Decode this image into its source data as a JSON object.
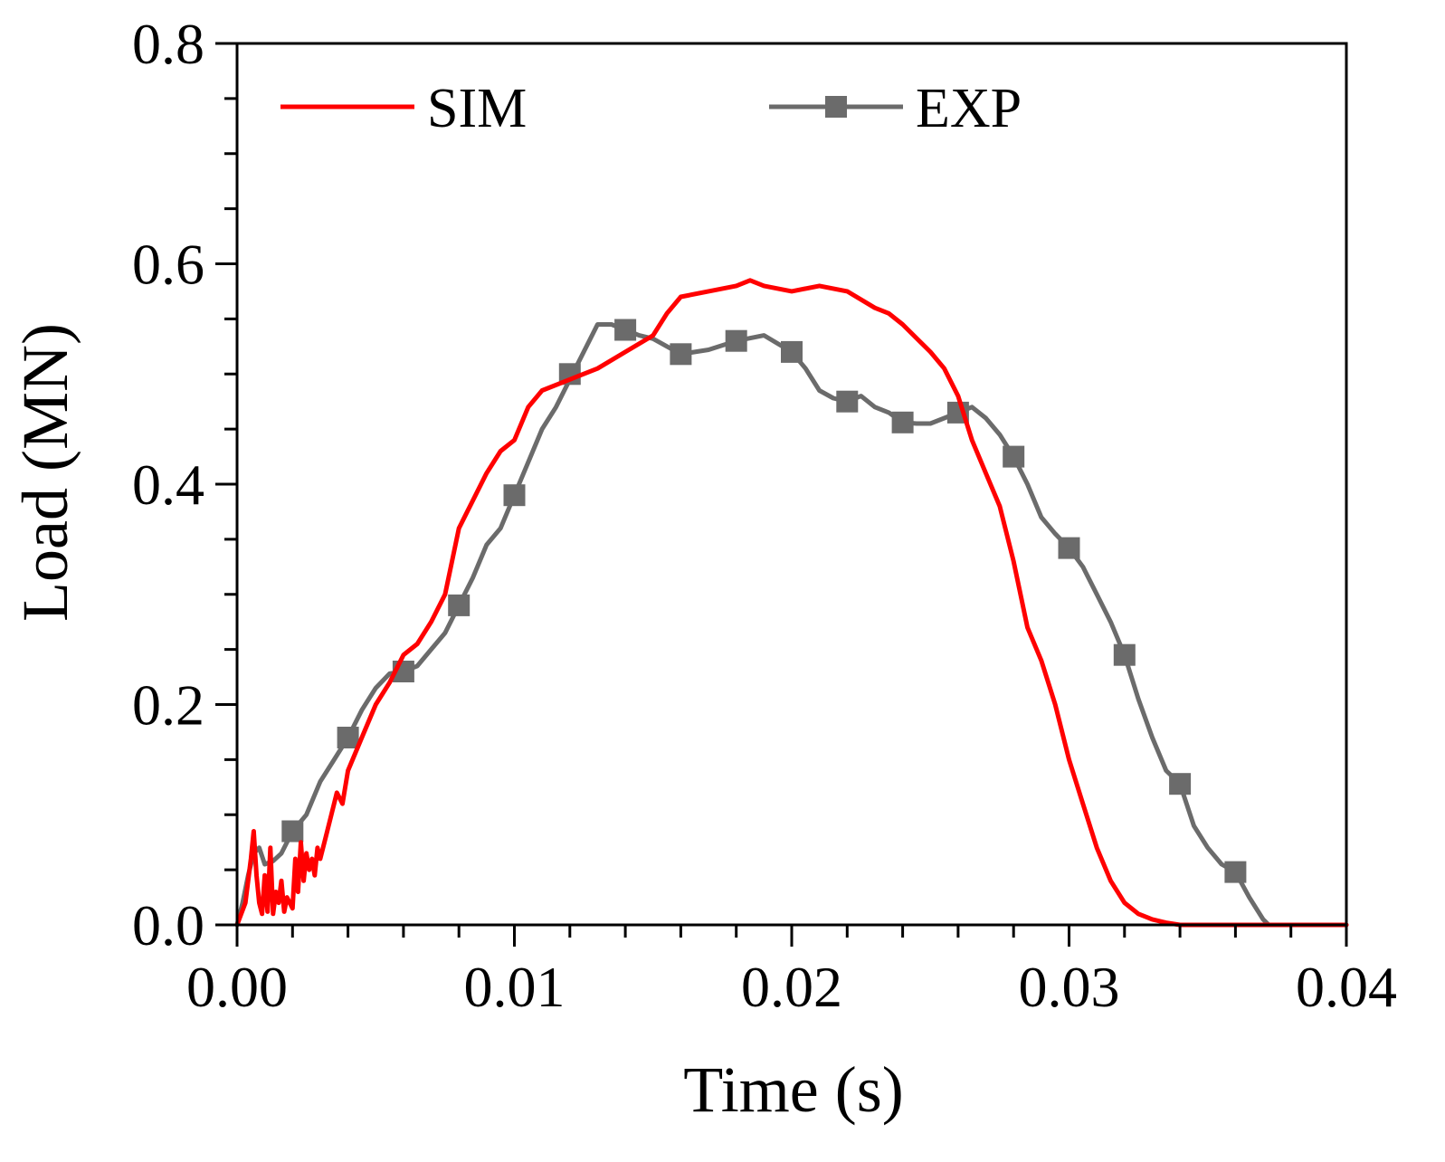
{
  "chart_data": {
    "type": "line",
    "title": "",
    "xlabel": "Time (s)",
    "ylabel": "Load (MN)",
    "xlim": [
      0,
      0.04
    ],
    "ylim": [
      0,
      0.8
    ],
    "x_ticks": [
      0.0,
      0.01,
      0.02,
      0.03,
      0.04
    ],
    "x_tick_labels": [
      "0.00",
      "0.01",
      "0.02",
      "0.03",
      "0.04"
    ],
    "y_ticks": [
      0.0,
      0.2,
      0.4,
      0.6,
      0.8
    ],
    "y_tick_labels": [
      "0.0",
      "0.2",
      "0.4",
      "0.6",
      "0.8"
    ],
    "grid": false,
    "legend_position": "top",
    "series": [
      {
        "name": "SIM",
        "color": "#ff0000",
        "marker": "none",
        "x": [
          0,
          0.0003,
          0.0005,
          0.0006,
          0.0007,
          0.0008,
          0.0009,
          0.001,
          0.0011,
          0.0012,
          0.0013,
          0.0014,
          0.0015,
          0.0016,
          0.0017,
          0.0018,
          0.002,
          0.0021,
          0.0022,
          0.0023,
          0.0024,
          0.0025,
          0.0026,
          0.0027,
          0.0028,
          0.0029,
          0.003,
          0.0032,
          0.0034,
          0.0036,
          0.0038,
          0.004,
          0.0045,
          0.005,
          0.0055,
          0.006,
          0.0065,
          0.007,
          0.0075,
          0.008,
          0.0085,
          0.009,
          0.0095,
          0.01,
          0.0105,
          0.011,
          0.012,
          0.013,
          0.014,
          0.015,
          0.0155,
          0.016,
          0.017,
          0.018,
          0.0185,
          0.019,
          0.02,
          0.021,
          0.022,
          0.023,
          0.0235,
          0.024,
          0.025,
          0.0255,
          0.026,
          0.0265,
          0.027,
          0.0275,
          0.028,
          0.0285,
          0.029,
          0.0295,
          0.03,
          0.0305,
          0.031,
          0.0315,
          0.032,
          0.0325,
          0.033,
          0.0335,
          0.034,
          0.035,
          0.036,
          0.037,
          0.038,
          0.039,
          0.04
        ],
        "y": [
          0.0,
          0.02,
          0.06,
          0.085,
          0.045,
          0.02,
          0.01,
          0.045,
          0.012,
          0.07,
          0.01,
          0.03,
          0.02,
          0.04,
          0.012,
          0.025,
          0.015,
          0.06,
          0.03,
          0.075,
          0.04,
          0.065,
          0.05,
          0.06,
          0.045,
          0.07,
          0.06,
          0.08,
          0.1,
          0.12,
          0.11,
          0.14,
          0.17,
          0.2,
          0.22,
          0.245,
          0.255,
          0.275,
          0.3,
          0.36,
          0.385,
          0.41,
          0.43,
          0.44,
          0.47,
          0.485,
          0.495,
          0.505,
          0.52,
          0.535,
          0.555,
          0.57,
          0.575,
          0.58,
          0.585,
          0.58,
          0.575,
          0.58,
          0.575,
          0.56,
          0.555,
          0.545,
          0.52,
          0.505,
          0.48,
          0.44,
          0.41,
          0.38,
          0.33,
          0.27,
          0.24,
          0.2,
          0.15,
          0.11,
          0.07,
          0.04,
          0.02,
          0.01,
          0.005,
          0.002,
          0.0,
          0.0,
          0.0,
          0.0,
          0.0,
          0.0,
          0.0
        ]
      },
      {
        "name": "EXP",
        "color": "#6b6b6b",
        "marker": "square",
        "x": [
          0,
          0.0002,
          0.0004,
          0.0006,
          0.0008,
          0.001,
          0.0013,
          0.0016,
          0.002,
          0.0025,
          0.003,
          0.0035,
          0.004,
          0.0045,
          0.005,
          0.0055,
          0.006,
          0.0065,
          0.007,
          0.0075,
          0.008,
          0.0085,
          0.009,
          0.0095,
          0.01,
          0.0105,
          0.011,
          0.0115,
          0.012,
          0.0125,
          0.013,
          0.0135,
          0.014,
          0.0145,
          0.015,
          0.0155,
          0.016,
          0.017,
          0.018,
          0.019,
          0.02,
          0.0205,
          0.021,
          0.0215,
          0.022,
          0.0225,
          0.023,
          0.0235,
          0.024,
          0.0245,
          0.025,
          0.0255,
          0.026,
          0.0265,
          0.027,
          0.0275,
          0.028,
          0.0285,
          0.029,
          0.0295,
          0.03,
          0.0305,
          0.031,
          0.0315,
          0.032,
          0.0325,
          0.033,
          0.0335,
          0.034,
          0.0345,
          0.035,
          0.0355,
          0.036,
          0.0365,
          0.037,
          0.0372,
          0.038,
          0.039,
          0.04
        ],
        "y": [
          0.0,
          0.02,
          0.045,
          0.065,
          0.07,
          0.055,
          0.058,
          0.065,
          0.085,
          0.1,
          0.13,
          0.15,
          0.17,
          0.195,
          0.215,
          0.228,
          0.23,
          0.235,
          0.25,
          0.265,
          0.29,
          0.315,
          0.345,
          0.36,
          0.39,
          0.42,
          0.45,
          0.47,
          0.495,
          0.52,
          0.545,
          0.545,
          0.54,
          0.535,
          0.532,
          0.525,
          0.518,
          0.522,
          0.53,
          0.535,
          0.52,
          0.505,
          0.485,
          0.478,
          0.475,
          0.48,
          0.47,
          0.465,
          0.456,
          0.455,
          0.455,
          0.46,
          0.465,
          0.47,
          0.46,
          0.445,
          0.425,
          0.4,
          0.37,
          0.355,
          0.342,
          0.325,
          0.3,
          0.275,
          0.245,
          0.205,
          0.17,
          0.14,
          0.128,
          0.09,
          0.07,
          0.055,
          0.048,
          0.025,
          0.005,
          0.0,
          0.0,
          0.0,
          0.0
        ],
        "marker_x": [
          0.002,
          0.004,
          0.006,
          0.008,
          0.01,
          0.012,
          0.014,
          0.016,
          0.018,
          0.02,
          0.022,
          0.024,
          0.026,
          0.028,
          0.03,
          0.032,
          0.034,
          0.036
        ],
        "marker_y": [
          0.085,
          0.17,
          0.23,
          0.29,
          0.39,
          0.5,
          0.54,
          0.518,
          0.53,
          0.52,
          0.475,
          0.456,
          0.465,
          0.425,
          0.342,
          0.245,
          0.128,
          0.048
        ]
      }
    ]
  }
}
